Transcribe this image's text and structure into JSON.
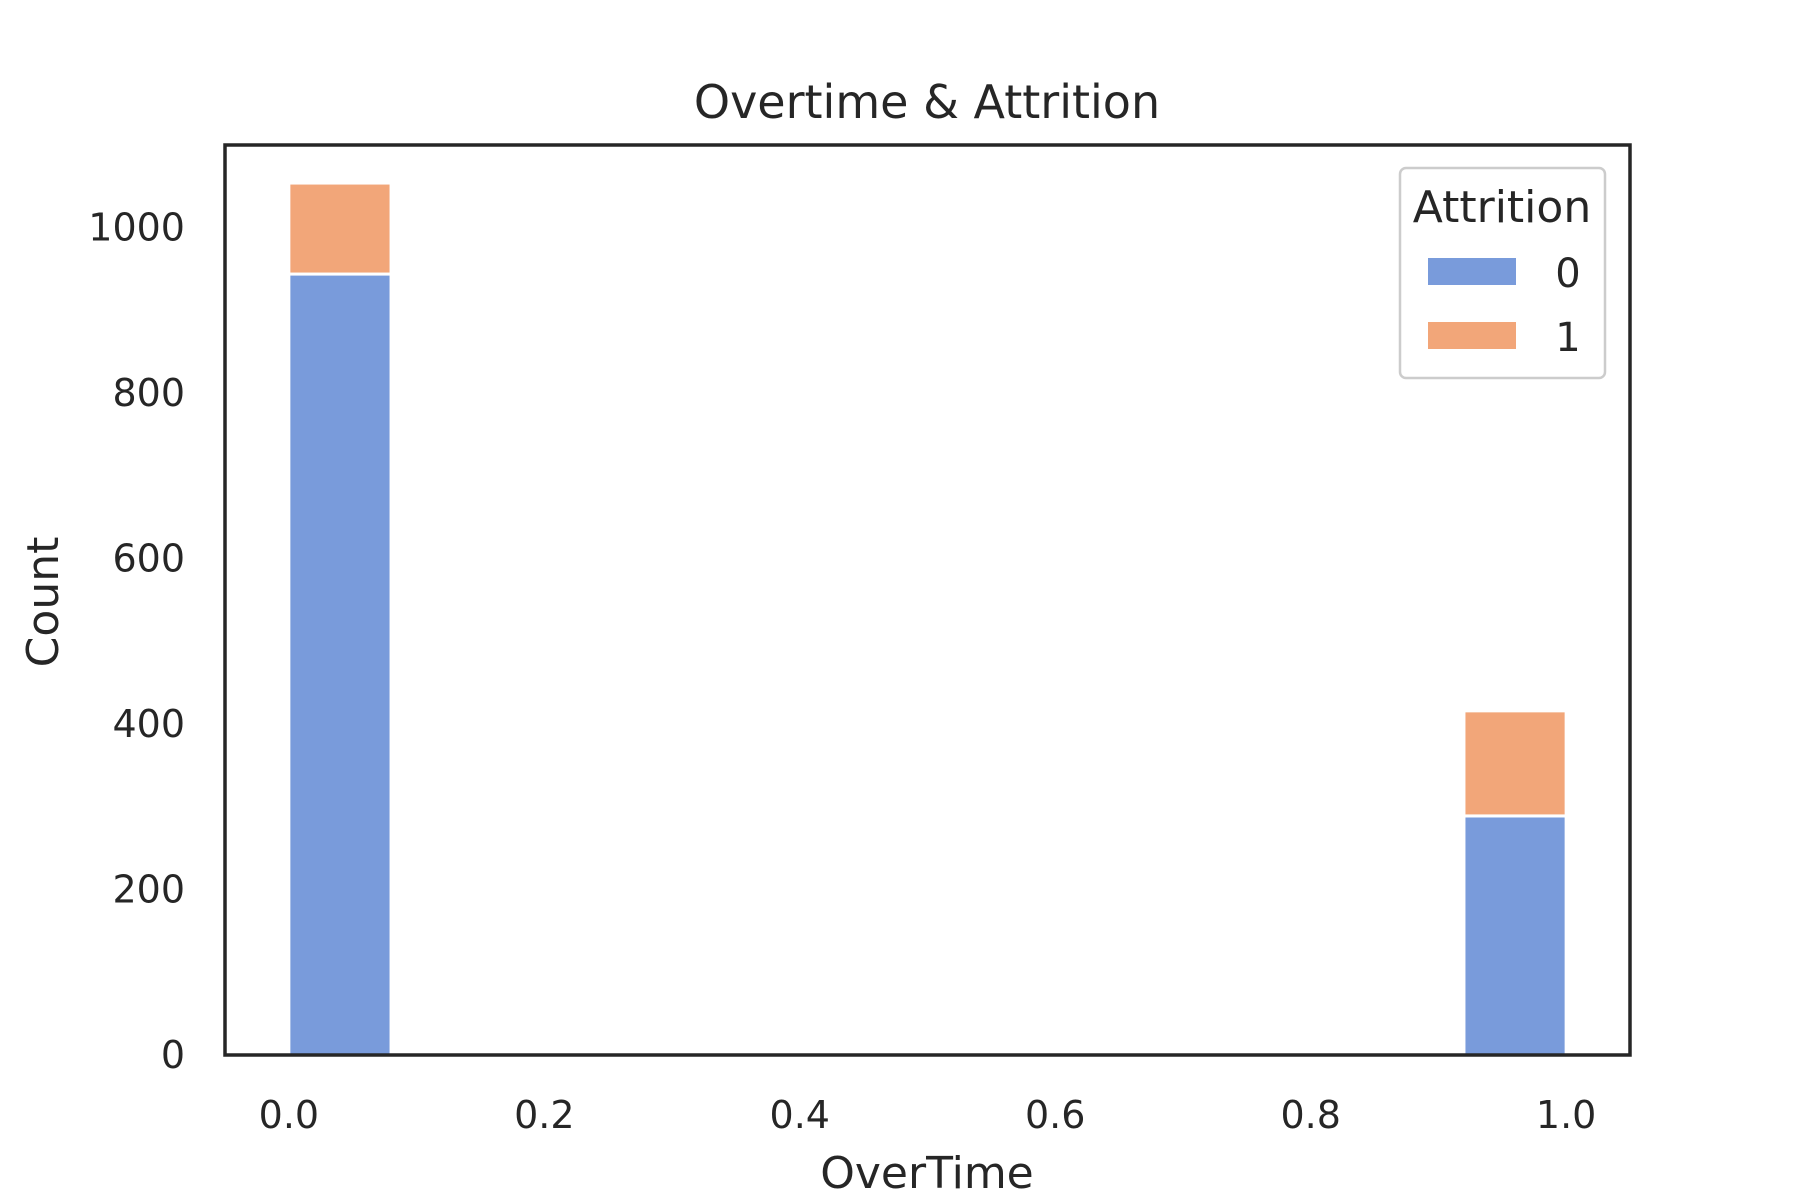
{
  "chart_data": {
    "type": "bar",
    "title": "Overtime & Attrition",
    "xlabel": "OverTime",
    "ylabel": "Count",
    "stacked": true,
    "bin_width": 0.08,
    "xlim": [
      -0.05,
      1.05
    ],
    "ylim": [
      0,
      1100
    ],
    "xticks": [
      "0.0",
      "0.2",
      "0.4",
      "0.6",
      "0.8",
      "1.0"
    ],
    "xtick_values": [
      0.0,
      0.2,
      0.4,
      0.6,
      0.8,
      1.0
    ],
    "yticks": [
      "0",
      "200",
      "400",
      "600",
      "800",
      "1000"
    ],
    "ytick_values": [
      0,
      200,
      400,
      600,
      800,
      1000
    ],
    "x": [
      0.0,
      0.92
    ],
    "grid": false,
    "legend": {
      "title": "Attrition",
      "placement": "top-right"
    },
    "series": [
      {
        "name": "0",
        "values": [
          944,
          289
        ],
        "color": "#799bdb"
      },
      {
        "name": "1",
        "values": [
          110,
          127
        ],
        "color": "#f2a679"
      }
    ]
  }
}
